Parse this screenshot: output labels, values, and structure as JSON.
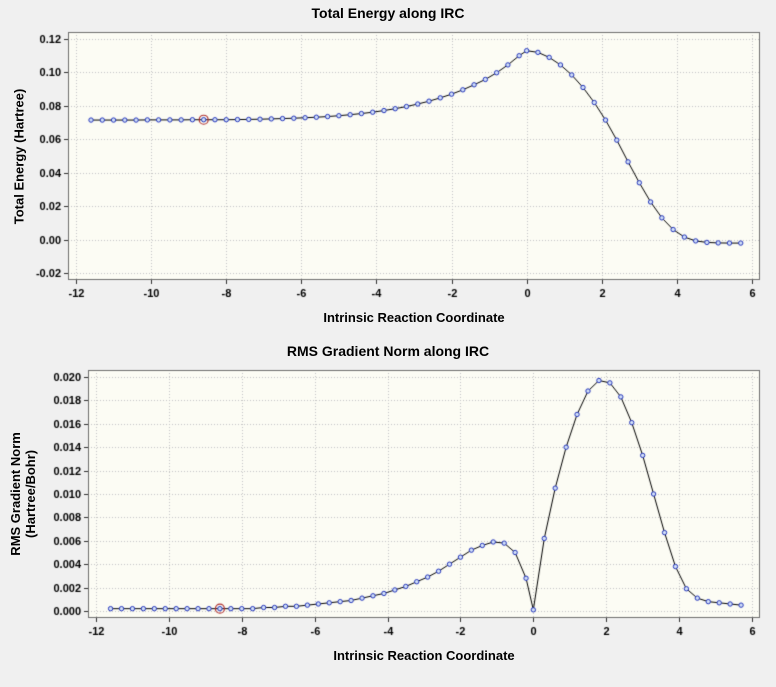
{
  "window": {
    "background": "#f0f0f0"
  },
  "chart_data": [
    {
      "id": "total-energy",
      "type": "line",
      "title": "Total Energy along IRC",
      "xlabel": "Intrinsic Reaction Coordinate",
      "ylabel_lines": [
        "Total Energy (Hartree)"
      ],
      "xlim": [
        -12,
        6
      ],
      "ylim": [
        -0.02,
        0.12
      ],
      "xticks": [
        -12,
        -10,
        -8,
        -6,
        -4,
        -2,
        0,
        2,
        4,
        6
      ],
      "xtick_labels": [
        "-12",
        "-10",
        "-8",
        "-6",
        "-4",
        "-2",
        "0",
        "2",
        "4",
        "6"
      ],
      "yticks": [
        -0.02,
        0.0,
        0.02,
        0.04,
        0.06,
        0.08,
        0.1,
        0.12
      ],
      "ytick_labels": [
        "-0.02",
        "0.00",
        "0.02",
        "0.04",
        "0.06",
        "0.08",
        "0.10",
        "0.12"
      ],
      "grid": true,
      "legend": "none",
      "x": [
        -11.6,
        -11.3,
        -11.0,
        -10.7,
        -10.4,
        -10.1,
        -9.8,
        -9.5,
        -9.2,
        -8.9,
        -8.6,
        -8.3,
        -8.0,
        -7.7,
        -7.4,
        -7.1,
        -6.8,
        -6.5,
        -6.2,
        -5.9,
        -5.6,
        -5.3,
        -5.0,
        -4.7,
        -4.4,
        -4.1,
        -3.8,
        -3.5,
        -3.2,
        -2.9,
        -2.6,
        -2.3,
        -2.0,
        -1.7,
        -1.4,
        -1.1,
        -0.8,
        -0.5,
        -0.2,
        0.0,
        0.3,
        0.6,
        0.9,
        1.2,
        1.5,
        1.8,
        2.1,
        2.4,
        2.7,
        3.0,
        3.3,
        3.6,
        3.9,
        4.2,
        4.5,
        4.8,
        5.1,
        5.4,
        5.7
      ],
      "y": [
        0.0715,
        0.0715,
        0.0715,
        0.0715,
        0.0715,
        0.0716,
        0.0716,
        0.0716,
        0.0716,
        0.0717,
        0.0717,
        0.0717,
        0.0717,
        0.0718,
        0.0719,
        0.072,
        0.0722,
        0.0724,
        0.0726,
        0.0729,
        0.0732,
        0.0736,
        0.0741,
        0.0747,
        0.0754,
        0.0762,
        0.0772,
        0.0783,
        0.0796,
        0.0811,
        0.0828,
        0.0848,
        0.087,
        0.0896,
        0.0926,
        0.0958,
        0.0998,
        0.1045,
        0.11,
        0.113,
        0.112,
        0.109,
        0.1045,
        0.0985,
        0.091,
        0.082,
        0.0715,
        0.0595,
        0.0465,
        0.034,
        0.0225,
        0.013,
        0.006,
        0.0015,
        -0.0008,
        -0.0017,
        -0.002,
        -0.0021,
        -0.0021
      ],
      "highlight_index": 10,
      "colors": {
        "plot_bg": "#fcfcf4",
        "grid": "#c4c4c4",
        "border": "#6e6e6e",
        "tick": "#303030",
        "line": "#000000",
        "marker_stroke": "#2233bb",
        "marker_fill": "#d4e2f8",
        "highlight": "#b03030"
      }
    },
    {
      "id": "rms-gradient",
      "type": "line",
      "title": "RMS Gradient Norm along IRC",
      "xlabel": "Intrinsic Reaction Coordinate",
      "ylabel_lines": [
        "RMS Gradient Norm",
        "(Hartree/Bohr)"
      ],
      "xlim": [
        -12,
        6
      ],
      "ylim": [
        0,
        0.02
      ],
      "xticks": [
        -12,
        -10,
        -8,
        -6,
        -4,
        -2,
        0,
        2,
        4,
        6
      ],
      "xtick_labels": [
        "-12",
        "-10",
        "-8",
        "-6",
        "-4",
        "-2",
        "0",
        "2",
        "4",
        "6"
      ],
      "yticks": [
        0.0,
        0.002,
        0.004,
        0.006,
        0.008,
        0.01,
        0.012,
        0.014,
        0.016,
        0.018,
        0.02
      ],
      "ytick_labels": [
        "0.000",
        "0.002",
        "0.004",
        "0.006",
        "0.008",
        "0.010",
        "0.012",
        "0.014",
        "0.016",
        "0.018",
        "0.020"
      ],
      "grid": true,
      "legend": "none",
      "x": [
        -11.6,
        -11.3,
        -11.0,
        -10.7,
        -10.4,
        -10.1,
        -9.8,
        -9.5,
        -9.2,
        -8.9,
        -8.6,
        -8.3,
        -8.0,
        -7.7,
        -7.4,
        -7.1,
        -6.8,
        -6.5,
        -6.2,
        -5.9,
        -5.6,
        -5.3,
        -5.0,
        -4.7,
        -4.4,
        -4.1,
        -3.8,
        -3.5,
        -3.2,
        -2.9,
        -2.6,
        -2.3,
        -2.0,
        -1.7,
        -1.4,
        -1.1,
        -0.8,
        -0.5,
        -0.2,
        0.0,
        0.3,
        0.6,
        0.9,
        1.2,
        1.5,
        1.8,
        2.1,
        2.4,
        2.7,
        3.0,
        3.3,
        3.6,
        3.9,
        4.2,
        4.5,
        4.8,
        5.1,
        5.4,
        5.7
      ],
      "y": [
        0.0002,
        0.0002,
        0.0002,
        0.0002,
        0.0002,
        0.0002,
        0.0002,
        0.0002,
        0.0002,
        0.0002,
        0.0002,
        0.0002,
        0.0002,
        0.0002,
        0.0003,
        0.0003,
        0.0004,
        0.0004,
        0.0005,
        0.0006,
        0.0007,
        0.0008,
        0.0009,
        0.0011,
        0.0013,
        0.0015,
        0.0018,
        0.0021,
        0.0025,
        0.0029,
        0.0034,
        0.004,
        0.0046,
        0.0052,
        0.0056,
        0.0059,
        0.0058,
        0.005,
        0.0028,
        0.0001,
        0.0062,
        0.0105,
        0.014,
        0.0168,
        0.0188,
        0.0197,
        0.0195,
        0.0183,
        0.0161,
        0.0133,
        0.01,
        0.0067,
        0.0038,
        0.0019,
        0.0011,
        0.0008,
        0.0007,
        0.0006,
        0.0005
      ],
      "highlight_index": 10,
      "colors": {
        "plot_bg": "#fcfcf4",
        "grid": "#c4c4c4",
        "border": "#6e6e6e",
        "tick": "#303030",
        "line": "#000000",
        "marker_stroke": "#2233bb",
        "marker_fill": "#d4e2f8",
        "highlight": "#b03030"
      }
    }
  ]
}
